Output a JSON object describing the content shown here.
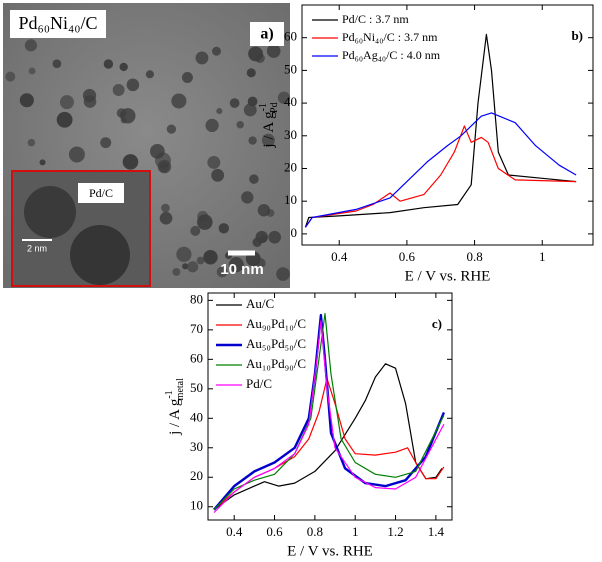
{
  "image_a": {
    "label": "Pd₆₀Ni₄₀/C",
    "panel": "a)",
    "inset_label": "Pd/C",
    "inset_scale": "2 nm",
    "scale": "10 nm"
  },
  "chart_data": [
    {
      "type": "line",
      "panel": "b)",
      "xlabel": "E / V vs. RHE",
      "ylabel": {
        "text": "j / A g",
        "sup": "-1",
        "sub": "Pd"
      },
      "xlim": [
        0.29,
        1.15
      ],
      "xticks": [
        0.4,
        0.6,
        0.8,
        1.0
      ],
      "ylim": [
        -3.4,
        70
      ],
      "yticks": [
        0,
        10,
        20,
        30,
        40,
        50,
        60
      ],
      "legend": "upper left",
      "series": [
        {
          "name": "Pd/C : 3.7 nm",
          "color": "#000000",
          "x": [
            0.3,
            0.31,
            0.4,
            0.55,
            0.65,
            0.75,
            0.79,
            0.81,
            0.835,
            0.85,
            0.87,
            0.9,
            1.0,
            1.1
          ],
          "values": [
            2,
            5,
            5.5,
            6.5,
            8,
            9,
            15,
            40,
            61,
            50,
            25,
            18,
            17,
            16
          ]
        },
        {
          "name": "Pd₆₀Ni₄₀/C : 3.7 nm",
          "color": "#ff0000",
          "x": [
            0.3,
            0.32,
            0.45,
            0.5,
            0.55,
            0.58,
            0.65,
            0.7,
            0.74,
            0.77,
            0.79,
            0.82,
            0.84,
            0.87,
            0.92,
            1.1
          ],
          "values": [
            2,
            5,
            7,
            9,
            12.5,
            10,
            12,
            18,
            25,
            33,
            28,
            29.5,
            28,
            20,
            16.5,
            16
          ]
        },
        {
          "name": "Pd₆₀Ag₄₀/C : 4.0 nm",
          "color": "#0000ff",
          "x": [
            0.3,
            0.32,
            0.45,
            0.55,
            0.6,
            0.66,
            0.72,
            0.76,
            0.82,
            0.85,
            0.92,
            0.98,
            1.05,
            1.1
          ],
          "values": [
            2,
            5,
            7.5,
            11,
            16,
            22,
            27,
            30,
            36,
            37,
            34,
            27,
            21,
            18
          ]
        }
      ]
    },
    {
      "type": "line",
      "panel": "c)",
      "xlabel": "E / V vs. RHE",
      "ylabel": {
        "text": "j / A g",
        "sup": "-1",
        "sub": "metal"
      },
      "xlim": [
        0.27,
        1.48
      ],
      "xticks": [
        0.4,
        0.6,
        0.8,
        1.0,
        1.2,
        1.4
      ],
      "ylim": [
        5.5,
        82.5
      ],
      "yticks": [
        10,
        20,
        30,
        40,
        50,
        60,
        70,
        80
      ],
      "legend": "upper left",
      "series": [
        {
          "name": "Au/C",
          "color": "#000000",
          "x": [
            0.3,
            0.4,
            0.5,
            0.55,
            0.62,
            0.7,
            0.8,
            0.9,
            1.0,
            1.05,
            1.1,
            1.15,
            1.2,
            1.25,
            1.3,
            1.35,
            1.4,
            1.43
          ],
          "values": [
            9,
            14,
            17,
            18.5,
            17,
            18,
            22,
            29,
            40,
            46,
            54,
            58.5,
            57,
            45,
            25,
            19.5,
            20,
            23
          ]
        },
        {
          "name": "Au₉₀Pd₁₀/C",
          "color": "#ff0000",
          "x": [
            0.3,
            0.4,
            0.5,
            0.6,
            0.7,
            0.77,
            0.82,
            0.86,
            0.9,
            0.95,
            1.0,
            1.1,
            1.2,
            1.26,
            1.3,
            1.35,
            1.4,
            1.44
          ],
          "values": [
            9,
            15,
            20,
            23,
            27,
            33,
            42,
            53.5,
            45,
            33,
            28,
            27.5,
            28.5,
            30,
            25,
            19.5,
            19.5,
            23.5
          ]
        },
        {
          "name": "Au₅₀Pd₅₀/C",
          "color": "#0000cc",
          "x": [
            0.3,
            0.4,
            0.5,
            0.6,
            0.7,
            0.77,
            0.8,
            0.83,
            0.85,
            0.88,
            0.95,
            1.05,
            1.15,
            1.25,
            1.35,
            1.44
          ],
          "values": [
            9,
            17,
            22,
            25,
            30,
            40,
            55,
            75,
            60,
            35,
            23,
            18,
            17,
            19,
            27,
            42
          ]
        },
        {
          "name": "Au₁₀Pd₉₀/C",
          "color": "#008000",
          "x": [
            0.3,
            0.4,
            0.5,
            0.6,
            0.7,
            0.78,
            0.82,
            0.85,
            0.88,
            0.93,
            1.0,
            1.1,
            1.2,
            1.3,
            1.44
          ],
          "values": [
            9,
            16,
            19,
            21,
            28,
            40,
            60,
            75.5,
            55,
            33,
            25,
            21,
            20,
            22,
            41
          ]
        },
        {
          "name": "Pd/C",
          "color": "#ff00ff",
          "x": [
            0.3,
            0.4,
            0.5,
            0.6,
            0.7,
            0.77,
            0.81,
            0.83,
            0.86,
            0.9,
            1.0,
            1.1,
            1.2,
            1.3,
            1.44
          ],
          "values": [
            8,
            15,
            20,
            23,
            28,
            38,
            60,
            73,
            50,
            30,
            20,
            16.5,
            16,
            20,
            38
          ]
        }
      ]
    }
  ]
}
